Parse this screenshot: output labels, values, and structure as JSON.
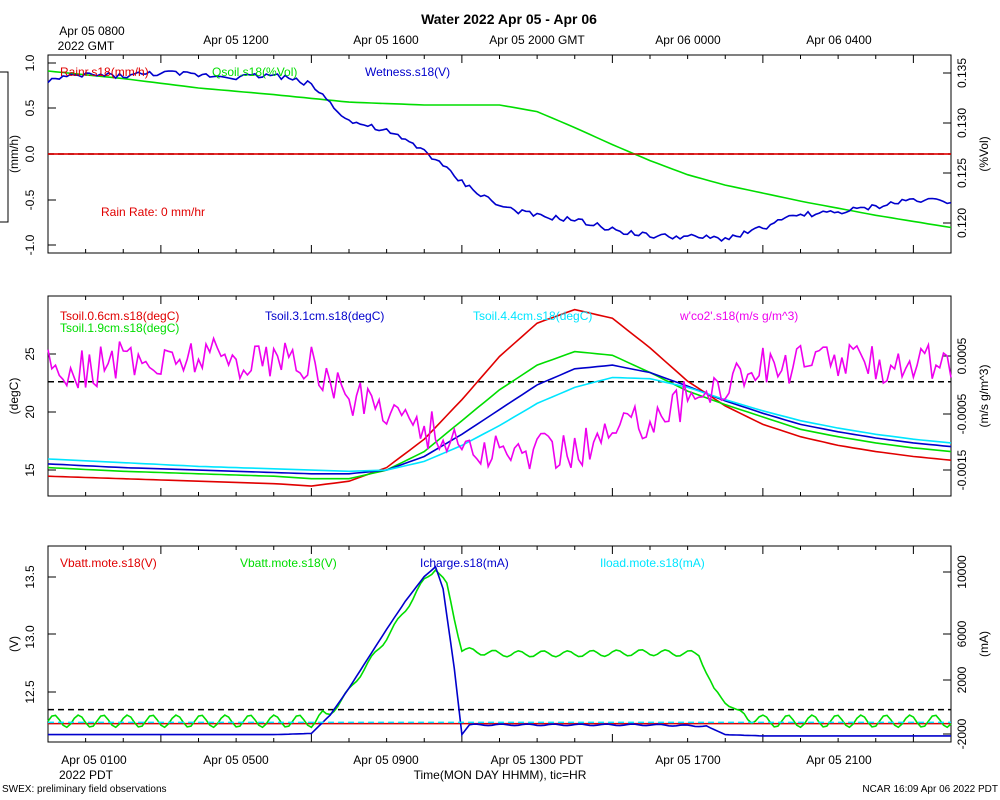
{
  "title": "Water 2022 Apr 05 - Apr 06",
  "top_axis": {
    "ticks": [
      "Apr 05 0800",
      "Apr 05 1200",
      "Apr 05 1600",
      "Apr 05 2000 GMT",
      "Apr 06 0000",
      "Apr 06 0400"
    ],
    "year_label": "2022 GMT"
  },
  "bottom_axis": {
    "ticks": [
      "Apr 05 0100",
      "Apr 05 0500",
      "Apr 05 0900",
      "Apr 05 1300 PDT",
      "Apr 05 1700",
      "Apr 05 2100"
    ],
    "year_label": "2022 PDT",
    "xlabel": "Time(MON DAY HHMM), tic=HR"
  },
  "footer": {
    "left": "SWEX: preliminary field observations",
    "right": "NCAR 16:09 Apr 06 2022 PDT"
  },
  "colors": {
    "red": "#e00000",
    "green": "#00dd00",
    "blue": "#0000cc",
    "cyan": "#00e5ff",
    "magenta": "#ee00ee",
    "black": "#000000"
  },
  "chart_data": [
    {
      "type": "line",
      "name": "water",
      "x_unit": "hours since Apr 05 0000 PDT",
      "xlim": [
        0,
        24
      ],
      "left_axis": {
        "label": "(mm/h)",
        "ticks": [
          "1.0",
          "0.5",
          "0.0",
          "-0.5",
          "-1.0"
        ],
        "range": [
          -1.05,
          1.05
        ]
      },
      "right_axis": {
        "label": "(%Vol)",
        "ticks": [
          "0.135",
          "0.130",
          "0.125",
          "0.120"
        ],
        "range": [
          0.1165,
          0.1375
        ]
      },
      "zero_line": 0,
      "annotation": "Rain Rate: 0 mm/hr",
      "series": [
        {
          "name": "Rainr.s18(mm/h)",
          "color": "red",
          "axis": "left",
          "x": [
            0,
            24
          ],
          "values": [
            0,
            0
          ]
        },
        {
          "name": "Qsoil.s18(%Vol)",
          "color": "green",
          "axis": "right",
          "x": [
            0,
            2,
            4,
            6,
            8,
            10,
            12,
            13,
            14,
            15,
            16,
            17,
            18,
            20,
            22,
            24
          ],
          "values": [
            0.1358,
            0.135,
            0.134,
            0.1333,
            0.1325,
            0.1322,
            0.1322,
            0.1315,
            0.1298,
            0.128,
            0.1263,
            0.1248,
            0.1237,
            0.122,
            0.1205,
            0.1192
          ]
        },
        {
          "name": "Wetness.s18(V)",
          "color": "blue",
          "axis": "left",
          "x": [
            0,
            1,
            2,
            3,
            4,
            5,
            6,
            7,
            8,
            9,
            10,
            11,
            12,
            13,
            14,
            15,
            16,
            17,
            18,
            19,
            20,
            21,
            22,
            23,
            24
          ],
          "values": [
            0.78,
            0.84,
            0.83,
            0.86,
            0.84,
            0.82,
            0.84,
            0.74,
            0.35,
            0.24,
            0.04,
            -0.3,
            -0.55,
            -0.66,
            -0.7,
            -0.8,
            -0.87,
            -0.88,
            -0.9,
            -0.78,
            -0.64,
            -0.62,
            -0.56,
            -0.48,
            -0.5
          ]
        }
      ]
    },
    {
      "type": "line",
      "name": "soil",
      "xlim": [
        0,
        24
      ],
      "left_axis": {
        "label": "(degC)",
        "ticks": [
          "25",
          "20",
          "15"
        ],
        "range": [
          13.2,
          29.4
        ]
      },
      "right_axis": {
        "label": "(m/s g/m^3)",
        "ticks": [
          "0.0005",
          "-0.0005",
          "-0.0015"
        ],
        "range": [
          -0.002,
          0.0015
        ]
      },
      "zero_line": 0,
      "series": [
        {
          "name": "Tsoil.0.6cm.s18(degC)",
          "color": "red",
          "axis": "left",
          "x": [
            0,
            2,
            4,
            6,
            7,
            8,
            9,
            10,
            11,
            12,
            13,
            14,
            15,
            16,
            17,
            18,
            19,
            20,
            21,
            22,
            23,
            24
          ],
          "values": [
            14.8,
            14.6,
            14.4,
            14.2,
            14.0,
            14.4,
            15.5,
            17.8,
            21.0,
            24.5,
            27.2,
            28.3,
            27.6,
            25.2,
            22.5,
            20.5,
            19.0,
            18.0,
            17.3,
            16.8,
            16.4,
            16.1
          ]
        },
        {
          "name": "Tsoil.1.9cm.s18(degC)",
          "color": "green",
          "axis": "left",
          "x": [
            0,
            2,
            4,
            6,
            7,
            8,
            9,
            10,
            11,
            12,
            13,
            14,
            15,
            16,
            17,
            18,
            19,
            20,
            21,
            22,
            23,
            24
          ],
          "values": [
            15.5,
            15.2,
            15.0,
            14.8,
            14.6,
            14.6,
            15.3,
            16.8,
            19.3,
            21.8,
            23.8,
            24.9,
            24.6,
            23.2,
            21.7,
            20.6,
            19.6,
            18.6,
            18.0,
            17.5,
            17.1,
            16.8
          ]
        },
        {
          "name": "Tsoil.3.1cm.s18(degC)",
          "color": "blue",
          "axis": "left",
          "x": [
            0,
            2,
            4,
            6,
            7,
            8,
            9,
            10,
            11,
            12,
            13,
            14,
            15,
            16,
            17,
            18,
            19,
            20,
            21,
            22,
            23,
            24
          ],
          "values": [
            15.8,
            15.5,
            15.3,
            15.1,
            15.0,
            15.0,
            15.3,
            16.4,
            18.2,
            20.2,
            22.2,
            23.5,
            23.8,
            23.2,
            22.1,
            20.9,
            19.9,
            19.0,
            18.4,
            17.9,
            17.5,
            17.2
          ]
        },
        {
          "name": "Tsoil.4.4cm.s18(degC)",
          "color": "cyan",
          "axis": "left",
          "x": [
            0,
            2,
            4,
            6,
            7,
            8,
            9,
            10,
            11,
            12,
            13,
            14,
            15,
            16,
            17,
            18,
            19,
            20,
            21,
            22,
            23,
            24
          ],
          "values": [
            16.2,
            15.9,
            15.6,
            15.4,
            15.3,
            15.2,
            15.3,
            16.0,
            17.3,
            18.9,
            20.7,
            22.0,
            22.8,
            22.7,
            22.0,
            21.0,
            20.1,
            19.3,
            18.7,
            18.2,
            17.8,
            17.5
          ]
        },
        {
          "name": "w'co2'.s18(m/s g/m^3)",
          "color": "magenta",
          "axis": "right",
          "x": [
            0,
            1,
            2,
            3,
            4,
            5,
            6,
            7,
            8,
            9,
            10,
            11,
            12,
            13,
            14,
            15,
            16,
            17,
            18,
            19,
            20,
            21,
            22,
            23,
            24
          ],
          "values": [
            0.0003,
            0.0002,
            0.0004,
            0.0003,
            0.0005,
            0.0004,
            0.0004,
            0.0003,
            -0.0003,
            -0.0004,
            -0.0008,
            -0.0011,
            -0.0013,
            -0.0012,
            -0.0012,
            -0.0009,
            -0.0006,
            -0.0003,
            0.0,
            0.0003,
            0.0003,
            0.0004,
            0.0003,
            0.0004,
            0.0003
          ]
        }
      ]
    },
    {
      "type": "line",
      "name": "power",
      "xlim": [
        0,
        24
      ],
      "left_axis": {
        "label": "(V)",
        "ticks": [
          "13.5",
          "13.0",
          "12.5"
        ],
        "range": [
          12.2,
          13.8
        ]
      },
      "right_axis": {
        "label": "(mA)",
        "ticks": [
          "10000",
          "6000",
          "2000",
          "-2000"
        ],
        "range": [
          -2300,
          11600
        ]
      },
      "zero_line": 0,
      "series": [
        {
          "name": "Vbatt.mote.s18(V)",
          "color": "red",
          "axis": "left",
          "x": [
            0,
            24
          ],
          "values": [
            12.35,
            12.35
          ]
        },
        {
          "name": "Vbatt.mote.s18(V)",
          "color": "green",
          "axis": "left",
          "x": [
            0,
            6.5,
            7,
            7.5,
            8,
            8.5,
            9,
            9.5,
            10,
            10.3,
            10.6,
            11,
            12,
            14,
            16,
            17.3,
            17.7,
            18.3,
            19,
            20,
            22,
            24
          ],
          "values": [
            12.37,
            12.37,
            12.37,
            12.43,
            12.62,
            12.84,
            13.05,
            13.28,
            13.52,
            13.62,
            13.48,
            12.95,
            12.92,
            12.92,
            12.93,
            12.92,
            12.62,
            12.45,
            12.37,
            12.37,
            12.37,
            12.37
          ]
        },
        {
          "name": "Icharge.s18(mA)",
          "color": "blue",
          "axis": "left",
          "x": [
            0,
            6,
            7,
            7.5,
            8,
            8.5,
            9,
            9.5,
            10,
            10.3,
            10.5,
            10.8,
            11,
            11.2,
            12,
            14,
            16,
            17.5,
            18,
            19,
            20,
            24
          ],
          "values": [
            12.26,
            12.26,
            12.27,
            12.42,
            12.64,
            12.88,
            13.12,
            13.35,
            13.55,
            13.63,
            13.45,
            12.8,
            12.26,
            12.34,
            12.34,
            12.34,
            12.34,
            12.33,
            12.26,
            12.25,
            12.25,
            12.25
          ]
        },
        {
          "name": "Iload.mote.s18(mA)",
          "color": "cyan",
          "axis": "left",
          "x": [
            0,
            24
          ],
          "values": [
            12.36,
            12.36
          ]
        }
      ]
    }
  ]
}
